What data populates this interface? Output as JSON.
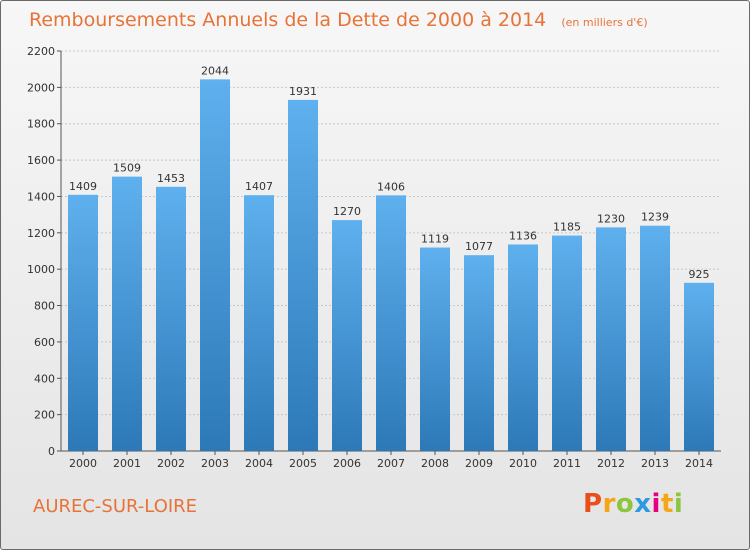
{
  "title": "Remboursements Annuels de la Dette de 2000 à 2014",
  "unit_note": "(en milliers d'€)",
  "town": "AUREC-SUR-LOIRE",
  "logo_text": "Proxiti",
  "colors": {
    "bar_top": "#5fb0ee",
    "bar_bottom": "#2d79b8",
    "title": "#e87338",
    "grid": "#c8c8c8"
  },
  "chart_data": {
    "type": "bar",
    "categories": [
      "2000",
      "2001",
      "2002",
      "2003",
      "2004",
      "2005",
      "2006",
      "2007",
      "2008",
      "2009",
      "2010",
      "2011",
      "2012",
      "2013",
      "2014"
    ],
    "values": [
      1409,
      1509,
      1453,
      2044,
      1407,
      1931,
      1270,
      1406,
      1119,
      1077,
      1136,
      1185,
      1230,
      1239,
      925
    ],
    "ylim": [
      0,
      2200
    ],
    "yticks": [
      0,
      200,
      400,
      600,
      800,
      1000,
      1200,
      1400,
      1600,
      1800,
      2000,
      2200
    ],
    "grid": true,
    "xlabel": "",
    "ylabel": ""
  }
}
